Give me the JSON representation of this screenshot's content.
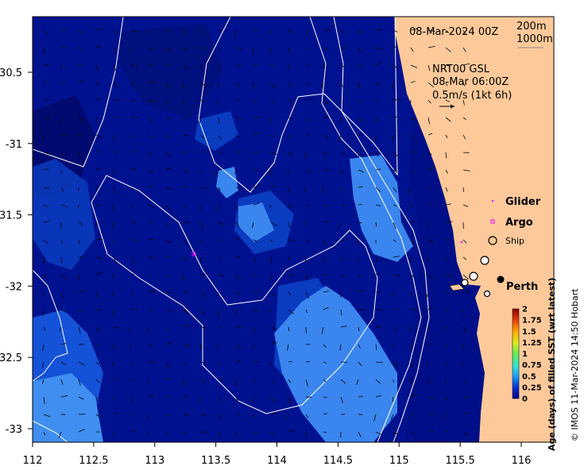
{
  "overlay": {
    "date": "08-Mar-2024 00Z",
    "depth_200": "200m",
    "depth_1000": "1000m",
    "current_product": "NRT00 GSL",
    "current_time": "08-Mar 06:00Z",
    "current_scale": "0.5m/s (1kt 6h)"
  },
  "legend": {
    "glider": "Glider",
    "argo": "Argo",
    "ship": "Ship",
    "perth": "Perth"
  },
  "colorbar": {
    "title": "Age (days) of filled SST (wrt latest)",
    "ticks": [
      "0",
      "0.25",
      "0.5",
      "0.75",
      "1",
      "1.25",
      "1.5",
      "1.75",
      "2"
    ],
    "range": [
      0,
      2
    ]
  },
  "credit": "© IMOS 11-Mar-2024 14:50 Hobart",
  "axes": {
    "x_ticks": [
      "112",
      "112.5",
      "113",
      "113.5",
      "114",
      "114.5",
      "115",
      "115.5",
      "116"
    ],
    "y_ticks": [
      "-30.5",
      "-31",
      "-31.5",
      "-32",
      "-32.5",
      "-33"
    ]
  },
  "colors": {
    "land": "#fdc99a",
    "ocean": "#00128f",
    "argo": "#ff00ff",
    "glider": "#ff00ff"
  }
}
